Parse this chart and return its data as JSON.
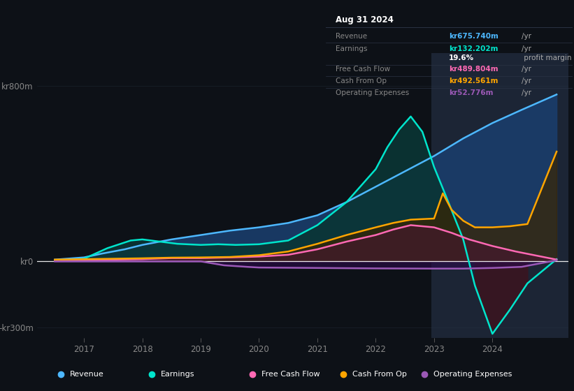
{
  "bg_color": "#0d1117",
  "highlight_bg": "#1c2535",
  "title_box": {
    "date": "Aug 31 2024",
    "rows": [
      {
        "label": "Revenue",
        "value": "kr675.740m",
        "unit": "/yr",
        "value_color": "#4db8ff"
      },
      {
        "label": "Earnings",
        "value": "kr132.202m",
        "unit": "/yr",
        "value_color": "#00e5cc"
      },
      {
        "label": "",
        "value": "19.6%",
        "unit": " profit margin",
        "value_color": "#ffffff"
      },
      {
        "label": "Free Cash Flow",
        "value": "kr489.804m",
        "unit": "/yr",
        "value_color": "#ff69b4"
      },
      {
        "label": "Cash From Op",
        "value": "kr492.561m",
        "unit": "/yr",
        "value_color": "#ffa500"
      },
      {
        "label": "Operating Expenses",
        "value": "kr52.776m",
        "unit": "/yr",
        "value_color": "#9b59b6"
      }
    ]
  },
  "ylim": [
    -350,
    950
  ],
  "ytick_vals": [
    -300,
    0,
    800
  ],
  "ytick_labels": [
    "-kr300m",
    "kr0",
    "kr800m"
  ],
  "xlim_start": 2016.2,
  "xlim_end": 2025.3,
  "xticks": [
    2017,
    2018,
    2019,
    2020,
    2021,
    2022,
    2023,
    2024
  ],
  "highlight_x_start": 2022.95,
  "series": {
    "revenue": {
      "color": "#4db8ff",
      "fill_color": "#1a3d6b",
      "label": "Revenue",
      "x": [
        2016.5,
        2017.0,
        2017.3,
        2017.7,
        2018.0,
        2018.5,
        2019.0,
        2019.5,
        2020.0,
        2020.5,
        2021.0,
        2021.5,
        2022.0,
        2022.5,
        2023.0,
        2023.5,
        2024.0,
        2024.5,
        2025.1
      ],
      "y": [
        8,
        18,
        35,
        55,
        75,
        100,
        120,
        140,
        155,
        175,
        210,
        270,
        340,
        410,
        480,
        560,
        630,
        690,
        760
      ]
    },
    "earnings": {
      "color": "#00e5cc",
      "fill_color": "#0a3535",
      "label": "Earnings",
      "x": [
        2016.5,
        2017.0,
        2017.4,
        2017.8,
        2018.0,
        2018.3,
        2018.6,
        2019.0,
        2019.3,
        2019.6,
        2020.0,
        2020.5,
        2021.0,
        2021.5,
        2022.0,
        2022.2,
        2022.4,
        2022.6,
        2022.8,
        2023.0,
        2023.2,
        2023.5,
        2023.7,
        2024.0,
        2024.3,
        2024.6,
        2025.1
      ],
      "y": [
        3,
        12,
        60,
        95,
        100,
        90,
        80,
        75,
        78,
        75,
        78,
        95,
        165,
        270,
        420,
        520,
        600,
        660,
        590,
        430,
        300,
        100,
        -110,
        -330,
        -220,
        -100,
        10
      ]
    },
    "free_cash_flow": {
      "color": "#ff69b4",
      "fill_color": "#4a1530",
      "label": "Free Cash Flow",
      "x": [
        2016.5,
        2017.0,
        2017.5,
        2018.0,
        2018.5,
        2019.0,
        2019.5,
        2020.0,
        2020.5,
        2021.0,
        2021.5,
        2022.0,
        2022.3,
        2022.6,
        2023.0,
        2023.3,
        2023.6,
        2024.0,
        2024.4,
        2025.1
      ],
      "y": [
        3,
        5,
        8,
        10,
        15,
        15,
        18,
        22,
        30,
        55,
        90,
        120,
        145,
        165,
        155,
        130,
        100,
        70,
        45,
        8
      ]
    },
    "cash_from_op": {
      "color": "#ffa500",
      "fill_color": "#3a2500",
      "label": "Cash From Op",
      "x": [
        2016.5,
        2017.0,
        2017.5,
        2018.0,
        2018.5,
        2019.0,
        2019.5,
        2020.0,
        2020.5,
        2021.0,
        2021.5,
        2022.0,
        2022.3,
        2022.6,
        2023.0,
        2023.15,
        2023.3,
        2023.5,
        2023.7,
        2024.0,
        2024.3,
        2024.6,
        2025.1
      ],
      "y": [
        8,
        10,
        12,
        14,
        17,
        18,
        20,
        28,
        45,
        80,
        120,
        155,
        175,
        190,
        195,
        310,
        235,
        185,
        155,
        155,
        160,
        170,
        500
      ]
    },
    "operating_expenses": {
      "color": "#9b59b6",
      "fill_color": "#2a0a4a",
      "label": "Operating Expenses",
      "x": [
        2016.5,
        2017.0,
        2018.0,
        2019.0,
        2019.4,
        2019.8,
        2020.0,
        2021.0,
        2022.0,
        2023.0,
        2023.5,
        2024.0,
        2024.5,
        2025.1
      ],
      "y": [
        0,
        0,
        0,
        0,
        -18,
        -25,
        -28,
        -30,
        -32,
        -33,
        -33,
        -30,
        -25,
        5
      ]
    }
  },
  "legend": [
    {
      "label": "Revenue",
      "color": "#4db8ff"
    },
    {
      "label": "Earnings",
      "color": "#00e5cc"
    },
    {
      "label": "Free Cash Flow",
      "color": "#ff69b4"
    },
    {
      "label": "Cash From Op",
      "color": "#ffa500"
    },
    {
      "label": "Operating Expenses",
      "color": "#9b59b6"
    }
  ]
}
